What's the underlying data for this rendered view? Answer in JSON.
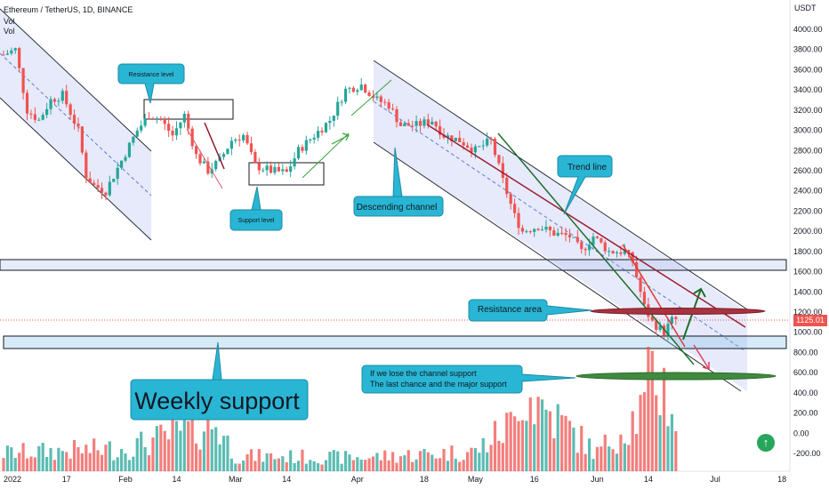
{
  "header": {
    "title": "Ethereum / TetherUS, 1D, BINANCE",
    "vol1": "Vol",
    "vol2": "Vol"
  },
  "currency": "USDT",
  "last_price": "1125.01",
  "chart_data": {
    "type": "candlestick",
    "y_ticks": [
      "4000.00",
      "3800.00",
      "3600.00",
      "3400.00",
      "3200.00",
      "3000.00",
      "2800.00",
      "2600.00",
      "2400.00",
      "2200.00",
      "2000.00",
      "1800.00",
      "1600.00",
      "1400.00",
      "1200.00",
      "1000.00",
      "800.00",
      "600.00",
      "400.00",
      "200.00",
      "0.00",
      "-200.00"
    ],
    "y_range": [
      -300,
      4100
    ],
    "x_ticks": [
      "2022",
      "17",
      "Feb",
      "14",
      "Mar",
      "14",
      "Apr",
      "18",
      "May",
      "16",
      "Jun",
      "14",
      "Jul",
      "18"
    ],
    "x_range": [
      "2022-01-01",
      "2022-07-20"
    ],
    "price_path": [
      [
        "2022-01-01",
        3750
      ],
      [
        "2022-01-04",
        3800
      ],
      [
        "2022-01-07",
        3200
      ],
      [
        "2022-01-10",
        3100
      ],
      [
        "2022-01-13",
        3300
      ],
      [
        "2022-01-16",
        3350
      ],
      [
        "2022-01-20",
        3000
      ],
      [
        "2022-01-22",
        2550
      ],
      [
        "2022-01-24",
        2450
      ],
      [
        "2022-01-27",
        2400
      ],
      [
        "2022-01-31",
        2700
      ],
      [
        "2022-02-04",
        3000
      ],
      [
        "2022-02-07",
        3150
      ],
      [
        "2022-02-10",
        3100
      ],
      [
        "2022-02-13",
        2950
      ],
      [
        "2022-02-16",
        3150
      ],
      [
        "2022-02-19",
        2750
      ],
      [
        "2022-02-22",
        2600
      ],
      [
        "2022-02-25",
        2700
      ],
      [
        "2022-02-28",
        2900
      ],
      [
        "2022-03-03",
        2950
      ],
      [
        "2022-03-06",
        2650
      ],
      [
        "2022-03-10",
        2600
      ],
      [
        "2022-03-14",
        2580
      ],
      [
        "2022-03-17",
        2800
      ],
      [
        "2022-03-21",
        2950
      ],
      [
        "2022-03-25",
        3100
      ],
      [
        "2022-03-29",
        3400
      ],
      [
        "2022-04-02",
        3450
      ],
      [
        "2022-04-06",
        3300
      ],
      [
        "2022-04-09",
        3250
      ],
      [
        "2022-04-12",
        3050
      ],
      [
        "2022-04-16",
        3050
      ],
      [
        "2022-04-20",
        3100
      ],
      [
        "2022-04-23",
        2950
      ],
      [
        "2022-04-27",
        2900
      ],
      [
        "2022-05-01",
        2800
      ],
      [
        "2022-05-05",
        2900
      ],
      [
        "2022-05-08",
        2500
      ],
      [
        "2022-05-11",
        2150
      ],
      [
        "2022-05-13",
        2000
      ],
      [
        "2022-05-17",
        2050
      ],
      [
        "2022-05-21",
        1980
      ],
      [
        "2022-05-25",
        1950
      ],
      [
        "2022-05-28",
        1800
      ],
      [
        "2022-05-31",
        1950
      ],
      [
        "2022-06-04",
        1800
      ],
      [
        "2022-06-08",
        1800
      ],
      [
        "2022-06-10",
        1700
      ],
      [
        "2022-06-13",
        1250
      ],
      [
        "2022-06-15",
        1100
      ],
      [
        "2022-06-18",
        1000
      ],
      [
        "2022-06-20",
        1120
      ],
      [
        "2022-06-21",
        1125
      ]
    ],
    "volume": {
      "dates": [
        "2022-01-01",
        "2022-02-01",
        "2022-02-24",
        "2022-03-01",
        "2022-04-01",
        "2022-05-01",
        "2022-05-11",
        "2022-05-12",
        "2022-06-01",
        "2022-06-13",
        "2022-06-14",
        "2022-06-18",
        "2022-06-21"
      ],
      "values": [
        120,
        150,
        320,
        100,
        90,
        130,
        330,
        560,
        120,
        420,
        650,
        560,
        340
      ]
    },
    "annotations": [
      {
        "text": "Resistance level"
      },
      {
        "text": "Support level"
      },
      {
        "text": "Descending channel"
      },
      {
        "text": "Trend line"
      },
      {
        "text": "Resistance area"
      },
      {
        "text": "Weekly support"
      },
      {
        "text": "If we lose the channel support\nThe last chance and the major support"
      }
    ]
  }
}
